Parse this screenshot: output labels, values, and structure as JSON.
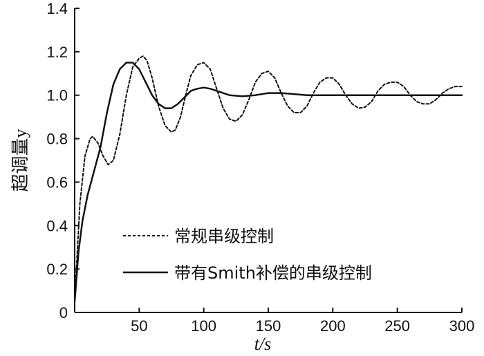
{
  "chart_data": {
    "type": "line",
    "title": "",
    "xlabel": "t/s",
    "ylabel": "超调量y",
    "xlim": [
      0,
      300
    ],
    "ylim": [
      0,
      1.4
    ],
    "x_ticks": [
      50,
      100,
      150,
      200,
      250,
      300
    ],
    "y_ticks": [
      0,
      0.2,
      0.4,
      0.6,
      0.8,
      1.0,
      1.2,
      1.4
    ],
    "y_tick_labels": [
      "0",
      "0.2",
      "0.4",
      "0.6",
      "0.8",
      "1.0",
      "1.2",
      "1.4"
    ],
    "legend_position": "lower-center",
    "grid": false,
    "series": [
      {
        "name": "常规串级控制",
        "style": "dashed",
        "color": "#111111",
        "x": [
          0,
          4,
          8,
          12,
          14,
          18,
          22,
          26,
          30,
          35,
          40,
          45,
          50,
          53,
          56,
          60,
          65,
          70,
          75,
          78,
          82,
          86,
          90,
          95,
          100,
          105,
          110,
          115,
          120,
          125,
          130,
          135,
          140,
          145,
          150,
          155,
          160,
          165,
          170,
          175,
          180,
          185,
          190,
          195,
          200,
          205,
          210,
          215,
          220,
          225,
          230,
          235,
          240,
          245,
          250,
          255,
          260,
          265,
          270,
          275,
          280,
          285,
          290,
          295,
          300
        ],
        "y": [
          0.05,
          0.5,
          0.72,
          0.8,
          0.81,
          0.78,
          0.72,
          0.68,
          0.7,
          0.82,
          1.0,
          1.13,
          1.17,
          1.18,
          1.16,
          1.08,
          0.95,
          0.86,
          0.83,
          0.84,
          0.9,
          1.0,
          1.09,
          1.14,
          1.15,
          1.12,
          1.03,
          0.94,
          0.89,
          0.88,
          0.91,
          0.98,
          1.06,
          1.1,
          1.11,
          1.08,
          1.01,
          0.95,
          0.92,
          0.92,
          0.95,
          1.01,
          1.06,
          1.08,
          1.08,
          1.05,
          1.0,
          0.96,
          0.94,
          0.945,
          0.97,
          1.02,
          1.05,
          1.06,
          1.06,
          1.04,
          1.0,
          0.97,
          0.96,
          0.96,
          0.98,
          1.01,
          1.03,
          1.04,
          1.04
        ]
      },
      {
        "name": "带有Smith补偿的串级控制",
        "style": "solid",
        "color": "#111111",
        "x": [
          0,
          3,
          6,
          10,
          15,
          20,
          25,
          30,
          35,
          40,
          45,
          50,
          55,
          60,
          65,
          70,
          75,
          80,
          85,
          90,
          95,
          100,
          105,
          110,
          115,
          120,
          130,
          140,
          150,
          160,
          170,
          180,
          190,
          200,
          220,
          240,
          260,
          280,
          300
        ],
        "y": [
          0.05,
          0.28,
          0.42,
          0.54,
          0.65,
          0.76,
          0.92,
          1.05,
          1.12,
          1.15,
          1.15,
          1.12,
          1.06,
          1.0,
          0.96,
          0.94,
          0.94,
          0.96,
          0.99,
          1.02,
          1.03,
          1.035,
          1.03,
          1.02,
          1.01,
          1.0,
          0.995,
          1.0,
          1.01,
          1.01,
          1.005,
          1.0,
          1.0,
          1.0,
          1.0,
          1.0,
          1.0,
          1.0,
          1.0
        ]
      }
    ]
  }
}
